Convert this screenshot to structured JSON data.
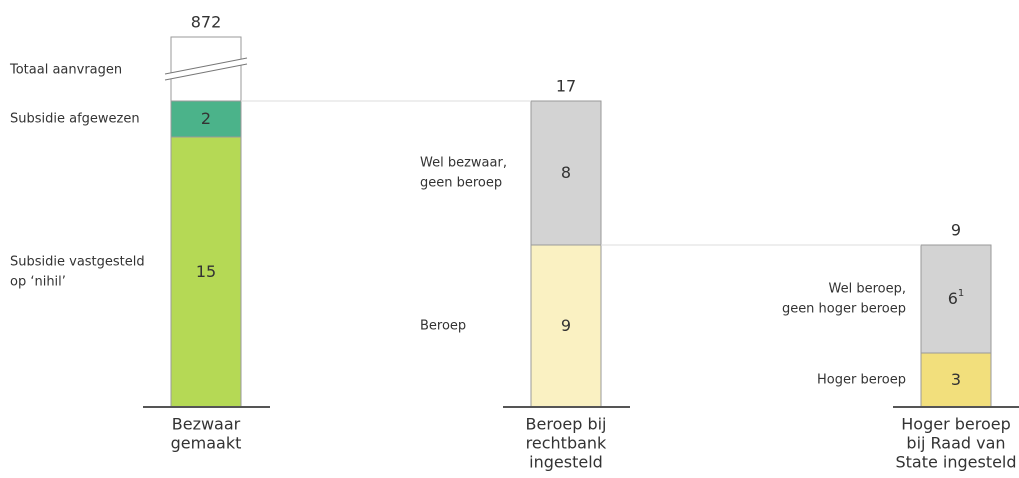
{
  "chart_data": {
    "type": "bar",
    "columns": [
      {
        "label": [
          "Bezwaar",
          "gemaakt"
        ],
        "total": 872,
        "total_label": "Totaal aanvragen",
        "segments": [
          {
            "name": [
              "Subsidie vastgesteld",
              "op ‘nihil’"
            ],
            "value": 15,
            "color": "#b5d955"
          },
          {
            "name": [
              "Subsidie afgewezen"
            ],
            "value": 2,
            "color": "#4bb38a"
          }
        ]
      },
      {
        "label": [
          "Beroep bij",
          "rechtbank",
          "ingesteld"
        ],
        "total": 17,
        "segments": [
          {
            "name": [
              "Beroep"
            ],
            "value": 9,
            "color": "#faf1c2"
          },
          {
            "name": [
              "Wel bezwaar,",
              "geen beroep"
            ],
            "value": 8,
            "color": "#d3d3d3"
          }
        ]
      },
      {
        "label": [
          "Hoger beroep",
          "bij Raad van",
          "State ingesteld"
        ],
        "total": 9,
        "segments": [
          {
            "name": [
              "Hoger beroep"
            ],
            "value": 3,
            "color": "#f2df7c"
          },
          {
            "name": [
              "Wel beroep,",
              "geen hoger beroep"
            ],
            "value": 6,
            "footnote": "1",
            "color": "#d3d3d3"
          }
        ]
      }
    ]
  }
}
